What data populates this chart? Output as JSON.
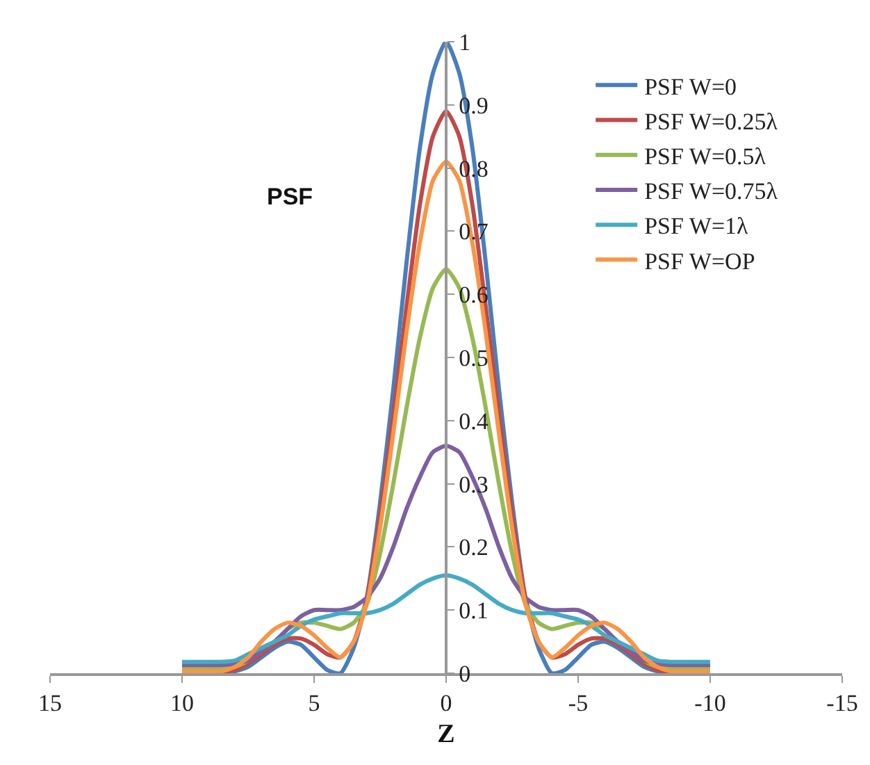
{
  "chart_data": {
    "type": "line",
    "xlabel": "Z",
    "ylabel": "PSF",
    "x": [
      -10,
      -9,
      -8.5,
      -8,
      -7.5,
      -7,
      -6.5,
      -6,
      -5.5,
      -5,
      -4.5,
      -4,
      -3.5,
      -3,
      -2.5,
      -2,
      -1.5,
      -1,
      -0.5,
      0,
      0.5,
      1,
      1.5,
      2,
      2.5,
      3,
      3.5,
      4,
      4.5,
      5,
      5.5,
      6,
      6.5,
      7,
      7.5,
      8,
      8.5,
      9,
      10
    ],
    "series": [
      {
        "name": "PSF W=0",
        "color": "#4a7ebb",
        "values": [
          0.01,
          0.01,
          0,
          0.003,
          0.01,
          0.025,
          0.04,
          0.05,
          0.045,
          0.025,
          0.005,
          0,
          0.04,
          0.12,
          0.27,
          0.45,
          0.65,
          0.83,
          0.95,
          1,
          0.95,
          0.83,
          0.65,
          0.45,
          0.27,
          0.12,
          0.04,
          0,
          0.005,
          0.025,
          0.045,
          0.05,
          0.04,
          0.025,
          0.01,
          0.003,
          0,
          0.01,
          0.01
        ]
      },
      {
        "name": "PSF W=0.25λ",
        "color": "#be4b48",
        "values": [
          0.005,
          0.005,
          0.003,
          0.005,
          0.015,
          0.03,
          0.045,
          0.055,
          0.055,
          0.045,
          0.03,
          0.025,
          0.05,
          0.12,
          0.25,
          0.41,
          0.58,
          0.74,
          0.85,
          0.89,
          0.85,
          0.74,
          0.58,
          0.41,
          0.25,
          0.12,
          0.05,
          0.025,
          0.03,
          0.045,
          0.055,
          0.055,
          0.045,
          0.03,
          0.015,
          0.005,
          0.003,
          0.005,
          0.005
        ]
      },
      {
        "name": "PSF W=0.5λ",
        "color": "#98b954",
        "values": [
          0.007,
          0.007,
          0.007,
          0.01,
          0.02,
          0.035,
          0.05,
          0.07,
          0.08,
          0.08,
          0.075,
          0.07,
          0.08,
          0.11,
          0.19,
          0.3,
          0.42,
          0.53,
          0.61,
          0.64,
          0.61,
          0.53,
          0.42,
          0.3,
          0.19,
          0.11,
          0.08,
          0.07,
          0.075,
          0.08,
          0.08,
          0.07,
          0.05,
          0.035,
          0.02,
          0.01,
          0.007,
          0.007,
          0.007
        ]
      },
      {
        "name": "PSF W=0.75λ",
        "color": "#7d60a0",
        "values": [
          0.013,
          0.013,
          0.013,
          0.015,
          0.02,
          0.035,
          0.05,
          0.07,
          0.09,
          0.1,
          0.1,
          0.1,
          0.105,
          0.12,
          0.15,
          0.2,
          0.26,
          0.31,
          0.35,
          0.36,
          0.35,
          0.31,
          0.26,
          0.2,
          0.15,
          0.12,
          0.105,
          0.1,
          0.1,
          0.1,
          0.09,
          0.07,
          0.05,
          0.035,
          0.02,
          0.015,
          0.013,
          0.013,
          0.013
        ]
      },
      {
        "name": "PSF W=1λ",
        "color": "#46aac5",
        "values": [
          0.018,
          0.018,
          0.018,
          0.02,
          0.03,
          0.04,
          0.05,
          0.06,
          0.075,
          0.085,
          0.09,
          0.095,
          0.095,
          0.095,
          0.1,
          0.11,
          0.125,
          0.14,
          0.15,
          0.155,
          0.15,
          0.14,
          0.125,
          0.11,
          0.1,
          0.095,
          0.095,
          0.095,
          0.09,
          0.085,
          0.075,
          0.06,
          0.05,
          0.04,
          0.03,
          0.02,
          0.018,
          0.018,
          0.018
        ]
      },
      {
        "name": "PSF W=OP",
        "color": "#f79646",
        "values": [
          0.003,
          0.003,
          0.003,
          0.01,
          0.025,
          0.05,
          0.07,
          0.08,
          0.075,
          0.06,
          0.04,
          0.025,
          0.05,
          0.11,
          0.23,
          0.38,
          0.54,
          0.68,
          0.78,
          0.81,
          0.78,
          0.68,
          0.54,
          0.38,
          0.23,
          0.11,
          0.05,
          0.025,
          0.04,
          0.06,
          0.075,
          0.08,
          0.07,
          0.05,
          0.025,
          0.01,
          0.003,
          0.003,
          0.003
        ]
      }
    ],
    "xlim": [
      15,
      -15
    ],
    "xticks": [
      15,
      10,
      5,
      0,
      -5,
      -10,
      -15
    ],
    "ylim": [
      0,
      1
    ],
    "yticks": [
      0,
      0.1,
      0.2,
      0.3,
      0.4,
      0.5,
      0.6,
      0.7,
      0.8,
      0.9,
      1
    ],
    "grid": false,
    "legend": "top right",
    "marker": "none",
    "line_style": "solid"
  }
}
